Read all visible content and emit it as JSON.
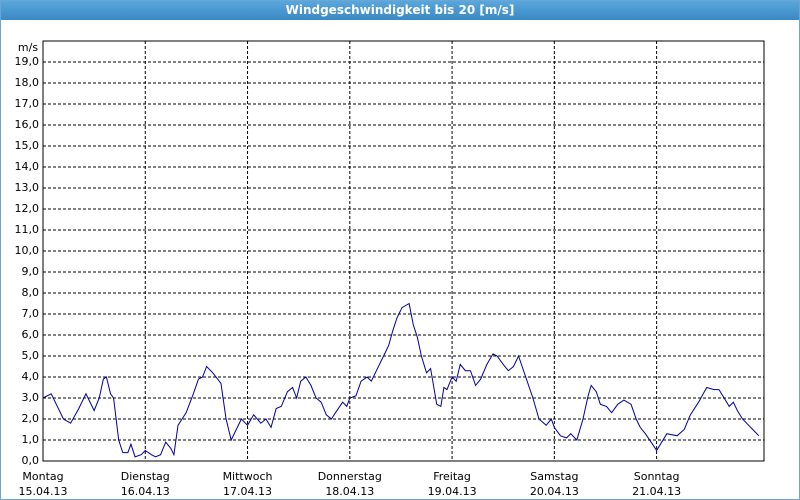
{
  "chart_data": {
    "type": "line",
    "title": "Windgeschwindigkeit bis 20 [m/s]",
    "y_label": "m/s",
    "x": [
      0,
      0.08,
      0.2,
      0.27,
      0.35,
      0.42,
      0.5,
      0.55,
      0.59,
      0.62,
      0.66,
      0.69,
      0.74,
      0.78,
      0.83,
      0.86,
      0.9,
      0.96,
      1.0,
      1.06,
      1.1,
      1.15,
      1.2,
      1.25,
      1.28,
      1.32,
      1.4,
      1.47,
      1.52,
      1.56,
      1.6,
      1.66,
      1.74,
      1.79,
      1.84,
      1.9,
      1.94,
      2.0,
      2.06,
      2.13,
      2.18,
      2.23,
      2.28,
      2.33,
      2.39,
      2.44,
      2.48,
      2.52,
      2.57,
      2.62,
      2.67,
      2.72,
      2.77,
      2.82,
      2.86,
      2.93,
      2.97,
      3.0,
      3.06,
      3.11,
      3.17,
      3.21,
      3.26,
      3.33,
      3.38,
      3.42,
      3.46,
      3.51,
      3.58,
      3.62,
      3.66,
      3.7,
      3.75,
      3.79,
      3.85,
      3.89,
      3.92,
      3.95,
      4.0,
      4.04,
      4.08,
      4.13,
      4.18,
      4.23,
      4.28,
      4.34,
      4.4,
      4.44,
      4.5,
      4.55,
      4.6,
      4.65,
      4.72,
      4.79,
      4.85,
      4.92,
      4.97,
      5.0,
      5.06,
      5.12,
      5.16,
      5.22,
      5.28,
      5.33,
      5.36,
      5.41,
      5.45,
      5.51,
      5.56,
      5.62,
      5.68,
      5.75,
      5.8,
      5.84,
      5.89,
      5.96,
      6.0,
      6.1,
      6.2,
      6.27,
      6.33,
      6.41,
      6.49,
      6.56,
      6.61,
      6.66,
      6.71,
      6.75,
      6.79,
      6.84,
      6.9,
      6.94,
      7.0
    ],
    "series": [
      {
        "name": "Windgeschwindigkeit",
        "color": "#0000a0",
        "values": [
          3.0,
          3.2,
          2.0,
          1.8,
          2.5,
          3.2,
          2.4,
          3.0,
          3.9,
          4.0,
          3.2,
          3.0,
          1.0,
          0.4,
          0.4,
          0.8,
          0.2,
          0.3,
          0.5,
          0.3,
          0.2,
          0.3,
          0.9,
          0.6,
          0.3,
          1.7,
          2.3,
          3.2,
          3.9,
          4.0,
          4.5,
          4.2,
          3.7,
          2.0,
          1.0,
          1.6,
          2.0,
          1.7,
          2.2,
          1.8,
          2.0,
          1.6,
          2.5,
          2.6,
          3.3,
          3.5,
          3.0,
          3.8,
          4.0,
          3.6,
          3.0,
          2.8,
          2.2,
          2.0,
          2.3,
          2.8,
          2.6,
          3.0,
          3.1,
          3.8,
          4.0,
          3.8,
          4.3,
          5.0,
          5.5,
          6.2,
          6.8,
          7.3,
          7.5,
          6.5,
          5.9,
          5.0,
          4.2,
          4.4,
          2.7,
          2.6,
          3.5,
          3.4,
          4.0,
          3.8,
          4.6,
          4.3,
          4.3,
          3.6,
          3.9,
          4.6,
          5.1,
          5.0,
          4.6,
          4.3,
          4.5,
          5.0,
          4.0,
          3.0,
          2.0,
          1.7,
          2.0,
          1.6,
          1.2,
          1.1,
          1.3,
          1.0,
          2.0,
          3.1,
          3.6,
          3.3,
          2.7,
          2.6,
          2.3,
          2.7,
          2.9,
          2.7,
          2.0,
          1.6,
          1.3,
          0.8,
          0.5,
          1.3,
          1.2,
          1.5,
          2.2,
          2.8,
          3.5,
          3.4,
          3.4,
          3.0,
          2.6,
          2.8,
          2.4,
          2.0,
          1.7,
          1.5,
          1.2
        ]
      }
    ],
    "xlim": [
      0,
      7.05
    ],
    "xticks": [
      {
        "value": 0,
        "label": "Montag"
      },
      {
        "value": 1,
        "label": "Dienstag"
      },
      {
        "value": 2,
        "label": "Mittwoch"
      },
      {
        "value": 3,
        "label": "Donnerstag"
      },
      {
        "value": 4,
        "label": "Freitag"
      },
      {
        "value": 5,
        "label": "Samstag"
      },
      {
        "value": 6,
        "label": "Sonntag"
      }
    ],
    "xtick_dates": [
      "15.04.13",
      "16.04.13",
      "17.04.13",
      "18.04.13",
      "19.04.13",
      "20.04.13",
      "21.04.13"
    ],
    "ylim": [
      0,
      20
    ],
    "yticks": [
      {
        "value": 0,
        "label": "0,0"
      },
      {
        "value": 1,
        "label": "1,0"
      },
      {
        "value": 2,
        "label": "2,0"
      },
      {
        "value": 3,
        "label": "3,0"
      },
      {
        "value": 4,
        "label": "4,0"
      },
      {
        "value": 5,
        "label": "5,0"
      },
      {
        "value": 6,
        "label": "6,0"
      },
      {
        "value": 7,
        "label": "7,0"
      },
      {
        "value": 8,
        "label": "8,0"
      },
      {
        "value": 9,
        "label": "9,0"
      },
      {
        "value": 10,
        "label": "10,0"
      },
      {
        "value": 11,
        "label": "11,0"
      },
      {
        "value": 12,
        "label": "12,0"
      },
      {
        "value": 13,
        "label": "13,0"
      },
      {
        "value": 14,
        "label": "14,0"
      },
      {
        "value": 15,
        "label": "15,0"
      },
      {
        "value": 16,
        "label": "16,0"
      },
      {
        "value": 17,
        "label": "17,0"
      },
      {
        "value": 18,
        "label": "18,0"
      },
      {
        "value": 19,
        "label": "19,0"
      }
    ],
    "grid": true
  }
}
